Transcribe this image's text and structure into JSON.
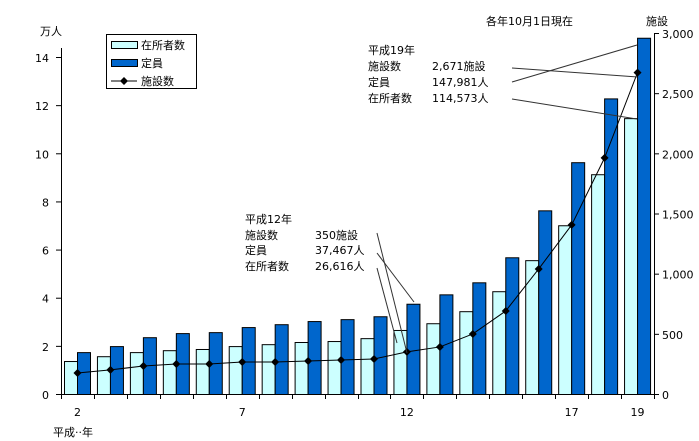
{
  "chart_data": {
    "type": "bar",
    "note": "各年10月1日現在",
    "categories": [
      "2",
      "3",
      "4",
      "5",
      "6",
      "7",
      "8",
      "9",
      "10",
      "11",
      "12",
      "13",
      "14",
      "15",
      "16",
      "17",
      "18",
      "19"
    ],
    "x_tick_labels": [
      "2",
      "7",
      "12",
      "17",
      "19"
    ],
    "xlabel": "平成··年",
    "ylabel_left": "万人",
    "ylabel_right": "施設",
    "ylim_left": [
      0,
      15
    ],
    "yticks_left": [
      "0",
      "2",
      "4",
      "6",
      "8",
      "10",
      "12",
      "14"
    ],
    "ylim_right": [
      0,
      3000
    ],
    "yticks_right": [
      "0",
      "500",
      "1,000",
      "1,500",
      "2,000",
      "2,500",
      "3,000"
    ],
    "grid": false,
    "legend_position": "top-left",
    "series": [
      {
        "name": "在所者数",
        "type": "bar",
        "axis": "left",
        "color": "#ccffff",
        "values": [
          1.37,
          1.57,
          1.74,
          1.82,
          1.87,
          1.99,
          2.07,
          2.16,
          2.2,
          2.32,
          2.66,
          2.94,
          3.44,
          4.27,
          5.56,
          7.01,
          9.13,
          11.46
        ]
      },
      {
        "name": "定員",
        "type": "bar",
        "axis": "left",
        "color": "#0066cc",
        "values": [
          1.74,
          1.99,
          2.36,
          2.53,
          2.57,
          2.78,
          2.9,
          3.03,
          3.11,
          3.23,
          3.75,
          4.14,
          4.64,
          5.68,
          7.63,
          9.63,
          12.28,
          14.8
        ]
      },
      {
        "name": "施設数",
        "type": "line",
        "axis": "right",
        "color": "#000000",
        "values": [
          175,
          200,
          233,
          249,
          249,
          266,
          266,
          274,
          283,
          291,
          350,
          391,
          499,
          690,
          1039,
          1405,
          1962,
          2671
        ]
      }
    ],
    "annotations": [
      {
        "lines": [
          [
            "平成12年",
            ""
          ],
          [
            "施設数",
            "350施設"
          ],
          [
            "定員",
            "37,467人"
          ],
          [
            "在所者数",
            "26,616人"
          ]
        ]
      },
      {
        "lines": [
          [
            "平成19年",
            ""
          ],
          [
            "施設数",
            "2,671施設"
          ],
          [
            "定員",
            "147,981人"
          ],
          [
            "在所者数",
            "114,573人"
          ]
        ]
      }
    ]
  }
}
